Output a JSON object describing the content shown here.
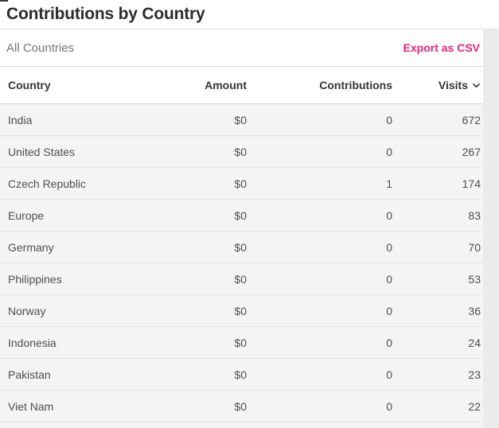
{
  "window": {
    "title": "Contributions by Country"
  },
  "toolbar": {
    "filter_label": "All Countries",
    "export_button": "Export as CSV"
  },
  "table": {
    "columns": [
      {
        "key": "country",
        "label": "Country",
        "align": "left",
        "sorted": ""
      },
      {
        "key": "amount",
        "label": "Amount",
        "align": "right",
        "sorted": ""
      },
      {
        "key": "contributions",
        "label": "Contributions",
        "align": "right",
        "sorted": ""
      },
      {
        "key": "visits",
        "label": "Visits",
        "align": "right",
        "sorted": "desc"
      }
    ],
    "rows": [
      {
        "country": "India",
        "amount": "$0",
        "contributions": "0",
        "visits": "672"
      },
      {
        "country": "United States",
        "amount": "$0",
        "contributions": "0",
        "visits": "267"
      },
      {
        "country": "Czech Republic",
        "amount": "$0",
        "contributions": "1",
        "visits": "174"
      },
      {
        "country": "Europe",
        "amount": "$0",
        "contributions": "0",
        "visits": "83"
      },
      {
        "country": "Germany",
        "amount": "$0",
        "contributions": "0",
        "visits": "70"
      },
      {
        "country": "Philippines",
        "amount": "$0",
        "contributions": "0",
        "visits": "53"
      },
      {
        "country": "Norway",
        "amount": "$0",
        "contributions": "0",
        "visits": "36"
      },
      {
        "country": "Indonesia",
        "amount": "$0",
        "contributions": "0",
        "visits": "24"
      },
      {
        "country": "Pakistan",
        "amount": "$0",
        "contributions": "0",
        "visits": "23"
      },
      {
        "country": "Viet Nam",
        "amount": "$0",
        "contributions": "0",
        "visits": "22"
      }
    ]
  },
  "icons": {
    "visits_sort": "chevron-down-icon"
  },
  "colors": {
    "accent_pink": "#ed2079",
    "row_bg": "#f4f4f4",
    "page_bg": "#ebebeb",
    "title_text": "#2a2c2e"
  }
}
